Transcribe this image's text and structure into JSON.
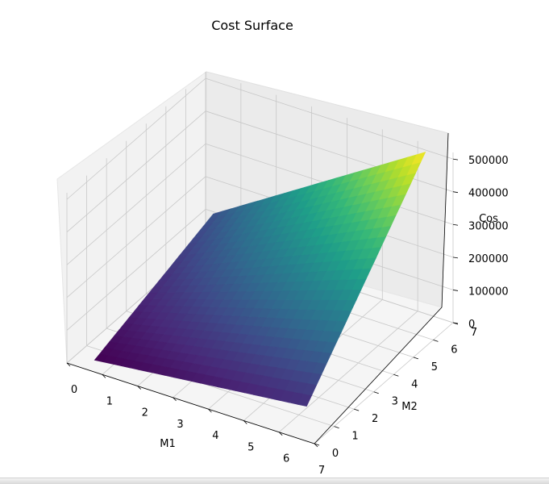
{
  "chart_data": {
    "type": "surface",
    "title": "Cost Surface",
    "xlabel": "M1",
    "ylabel": "M2",
    "zlabel": "Cos",
    "x_ticks": [
      0,
      1,
      2,
      3,
      4,
      5,
      6,
      7
    ],
    "y_ticks": [
      0,
      1,
      2,
      3,
      4,
      5,
      6,
      7
    ],
    "z_ticks": [
      0,
      100000,
      200000,
      300000,
      400000,
      500000
    ],
    "z_tick_labels": [
      "0",
      "100000",
      "200000",
      "300000",
      "400000",
      "500000"
    ],
    "xlim": [
      0,
      7
    ],
    "ylim": [
      0,
      7
    ],
    "zlim": [
      0,
      520000
    ],
    "corner_values": [
      {
        "x": 0.5,
        "y": 0.5,
        "z": 0
      },
      {
        "x": 6.5,
        "y": 0.5,
        "z": 70000
      },
      {
        "x": 0.5,
        "y": 6.5,
        "z": 130000
      },
      {
        "x": 6.5,
        "y": 6.5,
        "z": 530000
      }
    ],
    "colormap": "viridis",
    "grid": true
  }
}
